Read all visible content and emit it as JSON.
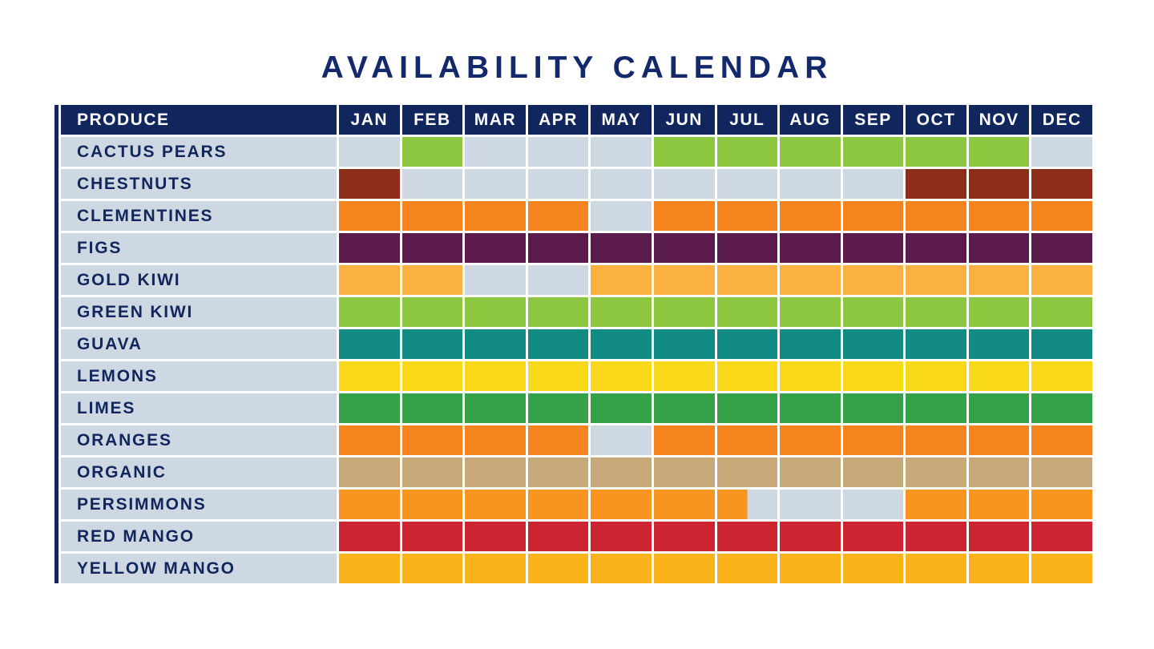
{
  "title": "AVAILABILITY CALENDAR",
  "colors": {
    "page_bg": "#FFFFFF",
    "title_text": "#14296B",
    "header_bg": "#12265E",
    "header_text": "#FFFFFF",
    "label_text": "#12265E",
    "empty_cell": "#CED8E2",
    "grid_line": "#FFFFFF",
    "accent_bar": "#12265E"
  },
  "chart_data": {
    "type": "heatmap",
    "title": "AVAILABILITY CALENDAR",
    "columns_header": "PRODUCE",
    "x": [
      "JAN",
      "FEB",
      "MAR",
      "APR",
      "MAY",
      "JUN",
      "JUL",
      "AUG",
      "SEP",
      "OCT",
      "NOV",
      "DEC"
    ],
    "value_legend": "1 = available that month, 0.5 = available first half of month (cell half-filled), 0 = not available (gray cell)",
    "rows": [
      {
        "name": "CACTUS PEARS",
        "color": "#8DC63F",
        "availability": [
          0,
          1,
          0,
          0,
          0,
          1,
          1,
          1,
          1,
          1,
          1,
          0
        ]
      },
      {
        "name": "CHESTNUTS",
        "color": "#8C2E1A",
        "availability": [
          1,
          0,
          0,
          0,
          0,
          0,
          0,
          0,
          0,
          1,
          1,
          1
        ]
      },
      {
        "name": "CLEMENTINES",
        "color": "#F5841F",
        "availability": [
          1,
          1,
          1,
          1,
          0,
          1,
          1,
          1,
          1,
          1,
          1,
          1
        ]
      },
      {
        "name": "FIGS",
        "color": "#5B1C4D",
        "availability": [
          1,
          1,
          1,
          1,
          1,
          1,
          1,
          1,
          1,
          1,
          1,
          1
        ]
      },
      {
        "name": "GOLD KIWI",
        "color": "#FBB042",
        "availability": [
          1,
          1,
          0,
          0,
          1,
          1,
          1,
          1,
          1,
          1,
          1,
          1
        ]
      },
      {
        "name": "GREEN KIWI",
        "color": "#8DC63F",
        "availability": [
          1,
          1,
          1,
          1,
          1,
          1,
          1,
          1,
          1,
          1,
          1,
          1
        ]
      },
      {
        "name": "GUAVA",
        "color": "#118B84",
        "availability": [
          1,
          1,
          1,
          1,
          1,
          1,
          1,
          1,
          1,
          1,
          1,
          1
        ]
      },
      {
        "name": "LEMONS",
        "color": "#F8D818",
        "availability": [
          1,
          1,
          1,
          1,
          1,
          1,
          1,
          1,
          1,
          1,
          1,
          1
        ]
      },
      {
        "name": "LIMES",
        "color": "#35A148",
        "availability": [
          1,
          1,
          1,
          1,
          1,
          1,
          1,
          1,
          1,
          1,
          1,
          1
        ]
      },
      {
        "name": "ORANGES",
        "color": "#F5841F",
        "availability": [
          1,
          1,
          1,
          1,
          0,
          1,
          1,
          1,
          1,
          1,
          1,
          1
        ]
      },
      {
        "name": "ORGANIC",
        "color": "#C7A878",
        "availability": [
          1,
          1,
          1,
          1,
          1,
          1,
          1,
          1,
          1,
          1,
          1,
          1
        ]
      },
      {
        "name": "PERSIMMONS",
        "color": "#F89520",
        "availability": [
          1,
          1,
          1,
          1,
          1,
          1,
          0.5,
          0,
          0,
          1,
          1,
          1
        ]
      },
      {
        "name": "RED MANGO",
        "color": "#CC2430",
        "availability": [
          1,
          1,
          1,
          1,
          1,
          1,
          1,
          1,
          1,
          1,
          1,
          1
        ]
      },
      {
        "name": "YELLOW MANGO",
        "color": "#FBB31C",
        "availability": [
          1,
          1,
          1,
          1,
          1,
          1,
          1,
          1,
          1,
          1,
          1,
          1
        ]
      }
    ]
  }
}
